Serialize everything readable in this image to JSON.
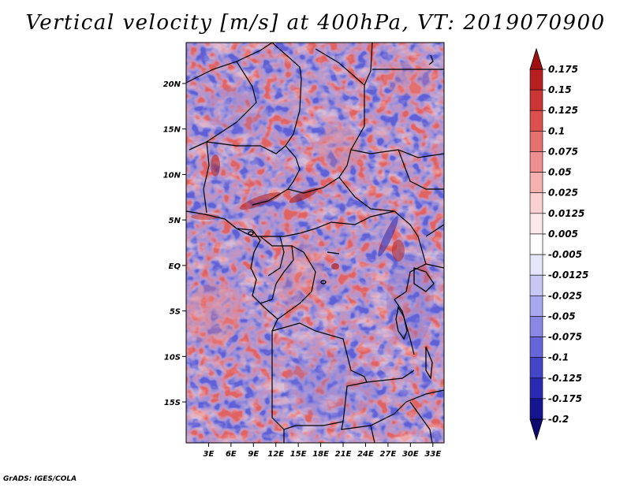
{
  "title": "Vertical velocity [m/s] at 400hPa, VT: 2019070900",
  "footer": "GrADS: IGES/COLA",
  "map": {
    "lon_range": [
      0,
      34.5
    ],
    "lat_range": [
      -19.5,
      24.5
    ],
    "lat_ticks": [
      {
        "value": 20,
        "label": "20N"
      },
      {
        "value": 15,
        "label": "15N"
      },
      {
        "value": 10,
        "label": "10N"
      },
      {
        "value": 5,
        "label": "5N"
      },
      {
        "value": 0,
        "label": "EQ"
      },
      {
        "value": -5,
        "label": "5S"
      },
      {
        "value": -10,
        "label": "10S"
      },
      {
        "value": -15,
        "label": "15S"
      }
    ],
    "lon_ticks": [
      {
        "value": 3,
        "label": "3E"
      },
      {
        "value": 6,
        "label": "6E"
      },
      {
        "value": 9,
        "label": "9E"
      },
      {
        "value": 12,
        "label": "12E"
      },
      {
        "value": 15,
        "label": "15E"
      },
      {
        "value": 18,
        "label": "18E"
      },
      {
        "value": 21,
        "label": "21E"
      },
      {
        "value": 24,
        "label": "24E"
      },
      {
        "value": 27,
        "label": "27E"
      },
      {
        "value": 30,
        "label": "30E"
      },
      {
        "value": 33,
        "label": "33E"
      }
    ]
  },
  "colorbar": {
    "labels": [
      "0.175",
      "0.15",
      "0.125",
      "0.1",
      "0.075",
      "0.05",
      "0.025",
      "0.0125",
      "0.005",
      "-0.005",
      "-0.0125",
      "-0.025",
      "-0.05",
      "-0.075",
      "-0.1",
      "-0.125",
      "-0.175",
      "-0.2"
    ],
    "colors": [
      "#a01010",
      "#b82020",
      "#cc3535",
      "#dd5050",
      "#e57070",
      "#ee9090",
      "#f5b0b0",
      "#fad0d0",
      "#fde8e8",
      "#ffffff",
      "#e6e6fa",
      "#c8c8f5",
      "#a8a8ee",
      "#8888e4",
      "#6666d8",
      "#4444c8",
      "#2a2ab0",
      "#151590",
      "#0a0a70"
    ]
  }
}
